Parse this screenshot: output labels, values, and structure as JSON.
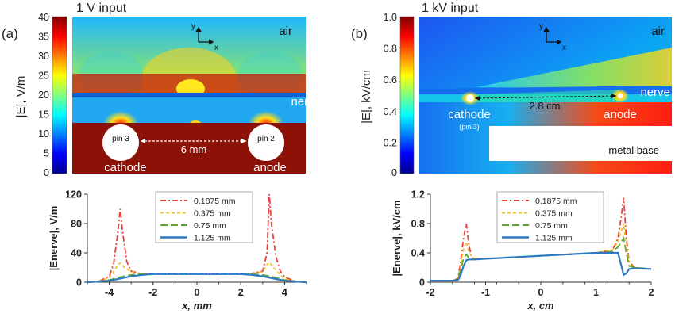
{
  "panel_a": {
    "label": "(a)",
    "title": "1 V input",
    "colorbar": {
      "label": "|E|, V/m",
      "ticks": [
        "40",
        "35",
        "30",
        "25",
        "20",
        "15",
        "10",
        "5",
        "0"
      ]
    },
    "annotations": {
      "air": "air",
      "nerve": "nerve",
      "pin3": "pin 3",
      "pin2": "pin 2",
      "distance": "6 mm",
      "cathode": "cathode",
      "anode": "anode",
      "axis_y": "y",
      "axis_x": "x"
    }
  },
  "panel_b": {
    "label": "(b)",
    "title": "1 kV input",
    "colorbar": {
      "label": "|E|, kV/cm",
      "ticks": [
        "1.0",
        "0.8",
        "0.6",
        "0.4",
        "0.2",
        "0"
      ]
    },
    "annotations": {
      "air": "air",
      "nerve": "nerve",
      "distance": "2.8 cm",
      "cathode": "cathode",
      "cathode_sub": "(pin 3)",
      "anode": "anode",
      "metal_base": "metal base",
      "axis_y": "y",
      "axis_x": "x"
    }
  },
  "chart_data": [
    {
      "type": "line",
      "ylabel": "|Enerve|, V/m",
      "xlabel": "x, mm",
      "xlim": [
        -5,
        5
      ],
      "ylim": [
        0,
        120
      ],
      "xticks": [
        "-4",
        "-2",
        "0",
        "2",
        "4"
      ],
      "yticks": [
        "0",
        "40",
        "80",
        "120"
      ],
      "legend_position": "upper-center",
      "series": [
        {
          "name": "0.1875 mm",
          "color": "#e8403a",
          "dash": "7 3 2 3",
          "x": [
            -5,
            -4.5,
            -4,
            -3.8,
            -3.6,
            -3.5,
            -3.4,
            -3.2,
            -3,
            -2.5,
            -2,
            -1,
            0,
            1,
            2,
            2.5,
            3,
            3.2,
            3.3,
            3.4,
            3.6,
            3.8,
            4,
            4.5,
            5
          ],
          "y": [
            0,
            1,
            8,
            25,
            70,
            100,
            70,
            28,
            15,
            11,
            12,
            12,
            12,
            12,
            12,
            12,
            15,
            40,
            120,
            80,
            35,
            15,
            7,
            1,
            0
          ]
        },
        {
          "name": "0.375 mm",
          "color": "#f2c12e",
          "dash": "4 3",
          "x": [
            -5,
            -4.5,
            -4,
            -3.8,
            -3.6,
            -3.5,
            -3.3,
            -3,
            -2.5,
            -2,
            -1,
            0,
            1,
            2,
            2.5,
            3,
            3.2,
            3.3,
            3.5,
            3.8,
            4,
            4.5,
            5
          ],
          "y": [
            0,
            1,
            6,
            14,
            24,
            26,
            20,
            14,
            11,
            12,
            12,
            12,
            12,
            12,
            12,
            14,
            24,
            27,
            20,
            10,
            5,
            1,
            0
          ]
        },
        {
          "name": "0.75 mm",
          "color": "#5aa832",
          "dash": "9 4",
          "x": [
            -5,
            -4.5,
            -4,
            -3.5,
            -3,
            -2.5,
            -2,
            -1,
            0,
            1,
            2,
            2.5,
            3,
            3.5,
            4,
            4.5,
            5
          ],
          "y": [
            0,
            1,
            3,
            7,
            10,
            11,
            12,
            12,
            12,
            12,
            12,
            11,
            10,
            7,
            3,
            1,
            0
          ]
        },
        {
          "name": "1.125 mm",
          "color": "#2e78c4",
          "dash": "",
          "x": [
            -5,
            -4.5,
            -4,
            -3.5,
            -3,
            -2.5,
            -2,
            -1,
            0,
            1,
            2,
            2.5,
            3,
            3.5,
            4,
            4.5,
            5
          ],
          "y": [
            0,
            1,
            2,
            5,
            8,
            10,
            11,
            11,
            11,
            11,
            11,
            10,
            8,
            5,
            2,
            1,
            0
          ]
        }
      ]
    },
    {
      "type": "line",
      "ylabel": "|Enerve|, kV/cm",
      "xlabel": "x, cm",
      "xlim": [
        -2,
        2
      ],
      "ylim": [
        0,
        1.2
      ],
      "xticks": [
        "-2",
        "-1",
        "0",
        "1",
        "2"
      ],
      "yticks": [
        "0",
        "0.4",
        "0.8",
        "1.2"
      ],
      "legend_position": "upper-center",
      "series": [
        {
          "name": "0.1875 mm",
          "color": "#e8403a",
          "dash": "7 3 2 3",
          "x": [
            -2,
            -1.6,
            -1.5,
            -1.45,
            -1.4,
            -1.35,
            -1.3,
            -1.25,
            -1.2,
            -1,
            0,
            1,
            1.3,
            1.4,
            1.45,
            1.5,
            1.55,
            1.6,
            1.7,
            2
          ],
          "y": [
            0.02,
            0.02,
            0.05,
            0.3,
            0.6,
            0.8,
            0.5,
            0.33,
            0.32,
            0.32,
            0.36,
            0.4,
            0.44,
            0.6,
            0.85,
            1.15,
            0.6,
            0.28,
            0.2,
            0.18
          ]
        },
        {
          "name": "0.375 mm",
          "color": "#f2c12e",
          "dash": "4 3",
          "x": [
            -2,
            -1.6,
            -1.5,
            -1.45,
            -1.4,
            -1.35,
            -1.3,
            -1.2,
            -1,
            0,
            1,
            1.3,
            1.4,
            1.5,
            1.55,
            1.6,
            1.7,
            2
          ],
          "y": [
            0.02,
            0.02,
            0.05,
            0.25,
            0.45,
            0.55,
            0.4,
            0.32,
            0.32,
            0.36,
            0.4,
            0.44,
            0.55,
            0.8,
            0.5,
            0.25,
            0.2,
            0.18
          ]
        },
        {
          "name": "0.75 mm",
          "color": "#5aa832",
          "dash": "9 4",
          "x": [
            -2,
            -1.6,
            -1.5,
            -1.45,
            -1.4,
            -1.35,
            -1.3,
            -1.2,
            -1,
            0,
            1,
            1.3,
            1.4,
            1.5,
            1.55,
            1.6,
            1.7,
            2
          ],
          "y": [
            0.02,
            0.02,
            0.04,
            0.18,
            0.32,
            0.38,
            0.33,
            0.31,
            0.32,
            0.36,
            0.4,
            0.42,
            0.48,
            0.6,
            0.4,
            0.22,
            0.2,
            0.18
          ]
        },
        {
          "name": "1.125 mm",
          "color": "#2e78c4",
          "dash": "",
          "x": [
            -2,
            -1.6,
            -1.5,
            -1.45,
            -1.4,
            -1.35,
            -1.3,
            -1.2,
            -1,
            0,
            1,
            1.4,
            1.45,
            1.5,
            1.55,
            1.6,
            1.7,
            2
          ],
          "y": [
            0.02,
            0.02,
            0.03,
            0.1,
            0.22,
            0.3,
            0.31,
            0.31,
            0.32,
            0.36,
            0.4,
            0.4,
            0.25,
            0.1,
            0.12,
            0.18,
            0.19,
            0.18
          ]
        }
      ]
    }
  ]
}
